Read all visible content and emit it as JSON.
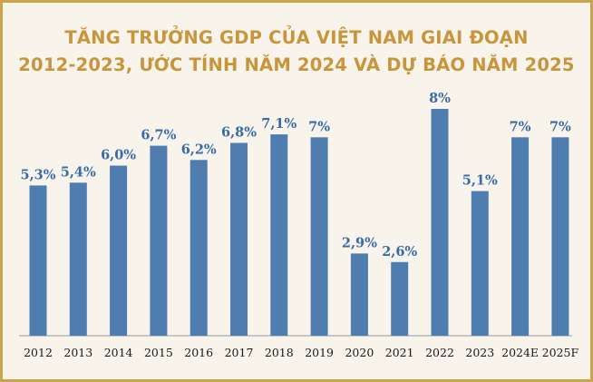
{
  "chart_data": {
    "type": "bar",
    "title_line1": "TĂNG TRƯỞNG GDP CỦA VIỆT NAM GIAI ĐOẠN",
    "title_line2": "2012-2023, ƯỚC TÍNH NĂM 2024 VÀ DỰ BÁO NĂM 2025",
    "categories": [
      "2012",
      "2013",
      "2014",
      "2015",
      "2016",
      "2017",
      "2018",
      "2019",
      "2020",
      "2021",
      "2022",
      "2023",
      "2024E",
      "2025F"
    ],
    "values": [
      5.3,
      5.4,
      6.0,
      6.7,
      6.2,
      6.8,
      7.1,
      7,
      2.9,
      2.6,
      8,
      5.1,
      7,
      7
    ],
    "data_labels": [
      "5,3%",
      "5,4%",
      "6,0%",
      "6,7%",
      "6,2%",
      "6,8%",
      "7,1%",
      "7%",
      "2,9%",
      "2,6%",
      "8%",
      "5,1%",
      "7%",
      "7%"
    ],
    "ylim": [
      0,
      8
    ],
    "grid": false,
    "bar_color": "#4f7db0"
  }
}
